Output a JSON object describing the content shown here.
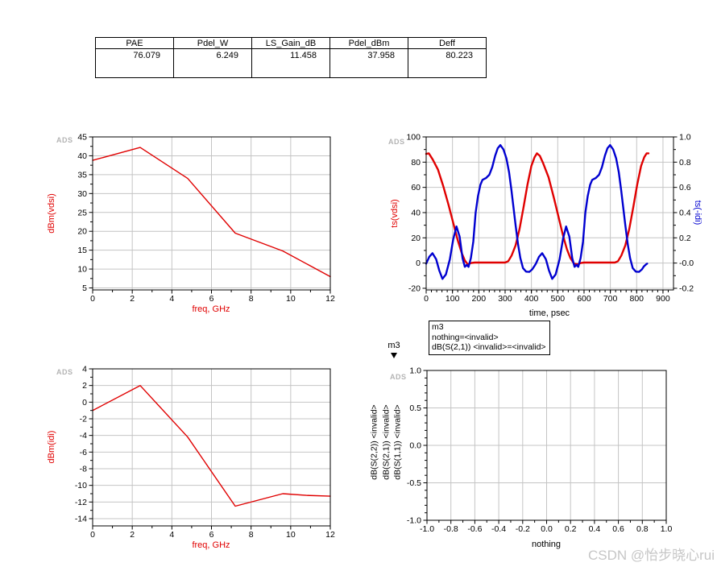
{
  "branding": {
    "logo": "ADS"
  },
  "watermark": {
    "text": "CSDN @怡步晓心rui"
  },
  "results_table": {
    "columns": [
      {
        "label": "PAE",
        "value": "76.079"
      },
      {
        "label": "Pdel_W",
        "value": "6.249"
      },
      {
        "label": "LS_Gain_dB",
        "value": "11.458"
      },
      {
        "label": "Pdel_dBm",
        "value": "37.958"
      },
      {
        "label": "Deff",
        "value": "80.223"
      }
    ]
  },
  "marker": {
    "label": "m3"
  },
  "annotation_box": {
    "line1": "m3",
    "line2": "nothing=<invalid>",
    "line3": "dB(S(2,1)) <invalid>=<invalid>"
  },
  "colors": {
    "trace_red": "#e00000",
    "trace_blue": "#0000d0",
    "grid": "#c4c4c4",
    "frame": "#000000"
  },
  "chart_data": [
    {
      "id": "vds-spectrum",
      "type": "line",
      "title": "",
      "xlabel": "freq, GHz",
      "ylabel": "dBm(vdsi)",
      "axes": {
        "x": {
          "edge": [
            0,
            12
          ],
          "ticks": [
            [
              0,
              "0"
            ],
            [
              2,
              "2"
            ],
            [
              4,
              "4"
            ],
            [
              6,
              "6"
            ],
            [
              8,
              "8"
            ],
            [
              10,
              "10"
            ],
            [
              12,
              "12"
            ]
          ],
          "minor": {
            "from": 1,
            "to": 11,
            "step": 2
          },
          "grid": {
            "from": 2,
            "to": 10,
            "step": 2
          }
        },
        "y": {
          "edge": [
            4.47,
            45
          ],
          "ticks": [
            [
              5,
              "5"
            ],
            [
              10,
              "10"
            ],
            [
              15,
              "15"
            ],
            [
              20,
              "20"
            ],
            [
              25,
              "25"
            ],
            [
              30,
              "30"
            ],
            [
              35,
              "35"
            ],
            [
              40,
              "40"
            ],
            [
              45,
              "45"
            ]
          ],
          "minor": {
            "from": 7.5,
            "to": 42.5,
            "step": 5
          },
          "grid": {
            "from": 5,
            "to": 40,
            "step": 5
          }
        }
      },
      "series": [
        {
          "name": "dBm(vdsi)",
          "color": "#e00000",
          "width": 1.4,
          "axis": "left",
          "points": [
            [
              0,
              38.8
            ],
            [
              2.4,
              42.2
            ],
            [
              4.8,
              34
            ],
            [
              7.2,
              19.5
            ],
            [
              9.6,
              14.8
            ],
            [
              12,
              8
            ]
          ]
        }
      ]
    },
    {
      "id": "waveforms",
      "type": "line",
      "title": "",
      "xlabel": "time, psec",
      "ylabel": "ts(vdsi)",
      "ylabel_right": "ts(-idi)",
      "axes": {
        "x": {
          "edge": [
            0,
            940
          ],
          "ticks": [
            [
              0,
              "0"
            ],
            [
              100,
              "100"
            ],
            [
              200,
              "200"
            ],
            [
              300,
              "300"
            ],
            [
              400,
              "400"
            ],
            [
              500,
              "500"
            ],
            [
              600,
              "600"
            ],
            [
              700,
              "700"
            ],
            [
              800,
              "800"
            ],
            [
              900,
              "900"
            ]
          ],
          "minor": {
            "from": 20,
            "to": 920,
            "step": 20
          },
          "grid": {
            "from": 100,
            "to": 900,
            "step": 100
          }
        },
        "y": {
          "edge": [
            -21.3,
            100
          ],
          "ticks": [
            [
              -20,
              "-20"
            ],
            [
              0,
              "0"
            ],
            [
              20,
              "20"
            ],
            [
              40,
              "40"
            ],
            [
              60,
              "60"
            ],
            [
              80,
              "80"
            ],
            [
              100,
              "100"
            ]
          ],
          "minor": {
            "from": -10,
            "to": 90,
            "step": 20
          },
          "grid": {
            "from": -20,
            "to": 80,
            "step": 20
          }
        },
        "y2": {
          "edge": [
            -0.213,
            1.0
          ],
          "ticks": [
            [
              1,
              "1.0"
            ],
            [
              0.8,
              "0.8"
            ],
            [
              0.6,
              "0.6"
            ],
            [
              0.4,
              "0.4"
            ],
            [
              0.2,
              "0.2"
            ],
            [
              0,
              "-0.0"
            ],
            [
              -0.2,
              "-0.2"
            ]
          ],
          "minor": {
            "from": -0.1,
            "to": 0.9,
            "step": 0.2
          }
        }
      },
      "series": [
        {
          "name": "ts(vdsi)",
          "color": "#e00000",
          "width": 2.4,
          "axis": "left",
          "points": [
            [
              0,
              86.5
            ],
            [
              10,
              87
            ],
            [
              25,
              82
            ],
            [
              45,
              74
            ],
            [
              65,
              61
            ],
            [
              85,
              46
            ],
            [
              105,
              30
            ],
            [
              120,
              18
            ],
            [
              135,
              8
            ],
            [
              147,
              2
            ],
            [
              158,
              -1
            ],
            [
              170,
              0
            ],
            [
              185,
              0.4
            ],
            [
              300,
              0.4
            ],
            [
              312,
              1.5
            ],
            [
              325,
              6
            ],
            [
              340,
              14
            ],
            [
              355,
              27
            ],
            [
              370,
              44
            ],
            [
              385,
              62
            ],
            [
              400,
              77
            ],
            [
              412,
              84
            ],
            [
              421,
              87
            ],
            [
              432,
              85
            ],
            [
              445,
              79
            ],
            [
              465,
              68
            ],
            [
              485,
              52
            ],
            [
              505,
              35
            ],
            [
              520,
              22
            ],
            [
              535,
              11
            ],
            [
              548,
              4
            ],
            [
              562,
              -0.5
            ],
            [
              575,
              -1
            ],
            [
              587,
              0
            ],
            [
              600,
              0.4
            ],
            [
              717,
              0.4
            ],
            [
              729,
              1.5
            ],
            [
              742,
              6
            ],
            [
              757,
              14
            ],
            [
              772,
              27
            ],
            [
              787,
              44
            ],
            [
              802,
              62
            ],
            [
              817,
              77
            ],
            [
              829,
              84
            ],
            [
              838,
              87
            ],
            [
              845,
              87
            ]
          ]
        },
        {
          "name": "ts(-idi)",
          "color": "#0000d0",
          "width": 2.4,
          "axis": "right",
          "points": [
            [
              0,
              -0.005
            ],
            [
              12,
              0.05
            ],
            [
              24,
              0.078
            ],
            [
              38,
              0.03
            ],
            [
              50,
              -0.06
            ],
            [
              62,
              -0.125
            ],
            [
              75,
              -0.09
            ],
            [
              90,
              0.03
            ],
            [
              103,
              0.19
            ],
            [
              115,
              0.29
            ],
            [
              127,
              0.21
            ],
            [
              138,
              0.04
            ],
            [
              147,
              -0.03
            ],
            [
              154,
              -0.015
            ],
            [
              161,
              -0.03
            ],
            [
              170,
              0.04
            ],
            [
              179,
              0.17
            ],
            [
              188,
              0.4
            ],
            [
              197,
              0.53
            ],
            [
              206,
              0.62
            ],
            [
              214,
              0.66
            ],
            [
              228,
              0.675
            ],
            [
              240,
              0.7
            ],
            [
              251,
              0.76
            ],
            [
              262,
              0.85
            ],
            [
              272,
              0.91
            ],
            [
              282,
              0.935
            ],
            [
              294,
              0.9
            ],
            [
              305,
              0.83
            ],
            [
              315,
              0.72
            ],
            [
              324,
              0.58
            ],
            [
              332,
              0.44
            ],
            [
              340,
              0.3
            ],
            [
              349,
              0.15
            ],
            [
              358,
              0.04
            ],
            [
              368,
              -0.04
            ],
            [
              380,
              -0.068
            ],
            [
              392,
              -0.07
            ],
            [
              403,
              -0.05
            ],
            [
              411,
              -0.025
            ],
            [
              417,
              -0.005
            ],
            [
              429,
              0.05
            ],
            [
              441,
              0.078
            ],
            [
              455,
              0.03
            ],
            [
              467,
              -0.06
            ],
            [
              479,
              -0.125
            ],
            [
              492,
              -0.09
            ],
            [
              507,
              0.03
            ],
            [
              520,
              0.19
            ],
            [
              532,
              0.29
            ],
            [
              544,
              0.21
            ],
            [
              555,
              0.04
            ],
            [
              564,
              -0.03
            ],
            [
              571,
              -0.015
            ],
            [
              578,
              -0.03
            ],
            [
              587,
              0.04
            ],
            [
              596,
              0.17
            ],
            [
              605,
              0.4
            ],
            [
              614,
              0.53
            ],
            [
              623,
              0.62
            ],
            [
              631,
              0.66
            ],
            [
              645,
              0.675
            ],
            [
              657,
              0.7
            ],
            [
              668,
              0.76
            ],
            [
              679,
              0.85
            ],
            [
              689,
              0.91
            ],
            [
              699,
              0.935
            ],
            [
              711,
              0.9
            ],
            [
              722,
              0.83
            ],
            [
              732,
              0.72
            ],
            [
              741,
              0.58
            ],
            [
              749,
              0.44
            ],
            [
              757,
              0.3
            ],
            [
              766,
              0.15
            ],
            [
              775,
              0.04
            ],
            [
              785,
              -0.04
            ],
            [
              797,
              -0.068
            ],
            [
              809,
              -0.07
            ],
            [
              820,
              -0.05
            ],
            [
              828,
              -0.025
            ],
            [
              836,
              -0.01
            ],
            [
              840,
              -0.005
            ]
          ]
        }
      ]
    },
    {
      "id": "idi-spectrum",
      "type": "line",
      "title": "",
      "xlabel": "freq, GHz",
      "ylabel": "dBm(idi)",
      "axes": {
        "x": {
          "edge": [
            0,
            12
          ],
          "ticks": [
            [
              0,
              "0"
            ],
            [
              2,
              "2"
            ],
            [
              4,
              "4"
            ],
            [
              6,
              "6"
            ],
            [
              8,
              "8"
            ],
            [
              10,
              "10"
            ],
            [
              12,
              "12"
            ]
          ],
          "minor": {
            "from": 1,
            "to": 11,
            "step": 2
          },
          "grid": {
            "from": 2,
            "to": 10,
            "step": 2
          }
        },
        "y": {
          "edge": [
            -14.87,
            4
          ],
          "ticks": [
            [
              -14,
              "-14"
            ],
            [
              -12,
              "-12"
            ],
            [
              -10,
              "-10"
            ],
            [
              -8,
              "-8"
            ],
            [
              -6,
              "-6"
            ],
            [
              -4,
              "-4"
            ],
            [
              -2,
              "-2"
            ],
            [
              0,
              "0"
            ],
            [
              2,
              "2"
            ],
            [
              4,
              "4"
            ]
          ],
          "minor": {
            "from": -13,
            "to": 3,
            "step": 2
          },
          "grid": {
            "from": -14,
            "to": 2,
            "step": 2
          }
        }
      },
      "series": [
        {
          "name": "dBm(idi)",
          "color": "#e00000",
          "width": 1.4,
          "axis": "left",
          "points": [
            [
              0,
              -1
            ],
            [
              2.4,
              2
            ],
            [
              4.8,
              -4.2
            ],
            [
              7.2,
              -12.5
            ],
            [
              9.6,
              -11
            ],
            [
              10.8,
              -11.2
            ],
            [
              12,
              -11.3
            ]
          ]
        }
      ]
    },
    {
      "id": "sparams",
      "type": "line",
      "title": "",
      "xlabel": "nothing",
      "ylabel_lines": [
        "dB(S(2,2)) <invalid>",
        "dB(S(2,1)) <invalid>",
        "dB(S(1,1)) <invalid>"
      ],
      "axes": {
        "x": {
          "edge": [
            -1,
            1
          ],
          "ticks": [
            [
              -1,
              "-1.0"
            ],
            [
              -0.8,
              "-0.8"
            ],
            [
              -0.6,
              "-0.6"
            ],
            [
              -0.4,
              "-0.4"
            ],
            [
              -0.2,
              "-0.2"
            ],
            [
              0,
              "0.0"
            ],
            [
              0.2,
              "0.2"
            ],
            [
              0.4,
              "0.4"
            ],
            [
              0.6,
              "0.6"
            ],
            [
              0.8,
              "0.8"
            ],
            [
              1,
              "1.0"
            ]
          ],
          "minor": {
            "from": -0.9,
            "to": 0.9,
            "step": 0.2
          },
          "grid": {
            "from": -0.8,
            "to": 0.8,
            "step": 0.2
          }
        },
        "y": {
          "edge": [
            -1,
            1
          ],
          "ticks": [
            [
              1,
              "1.0"
            ],
            [
              0.5,
              "0.5"
            ],
            [
              0,
              "0.0"
            ],
            [
              -0.5,
              "-0.5"
            ],
            [
              -1,
              "-1.0"
            ]
          ],
          "minor": {
            "from": -0.9,
            "to": 0.9,
            "step": 0.1
          },
          "grid": {
            "from": -0.5,
            "to": 0.5,
            "step": 0.5
          }
        }
      },
      "series": []
    }
  ]
}
